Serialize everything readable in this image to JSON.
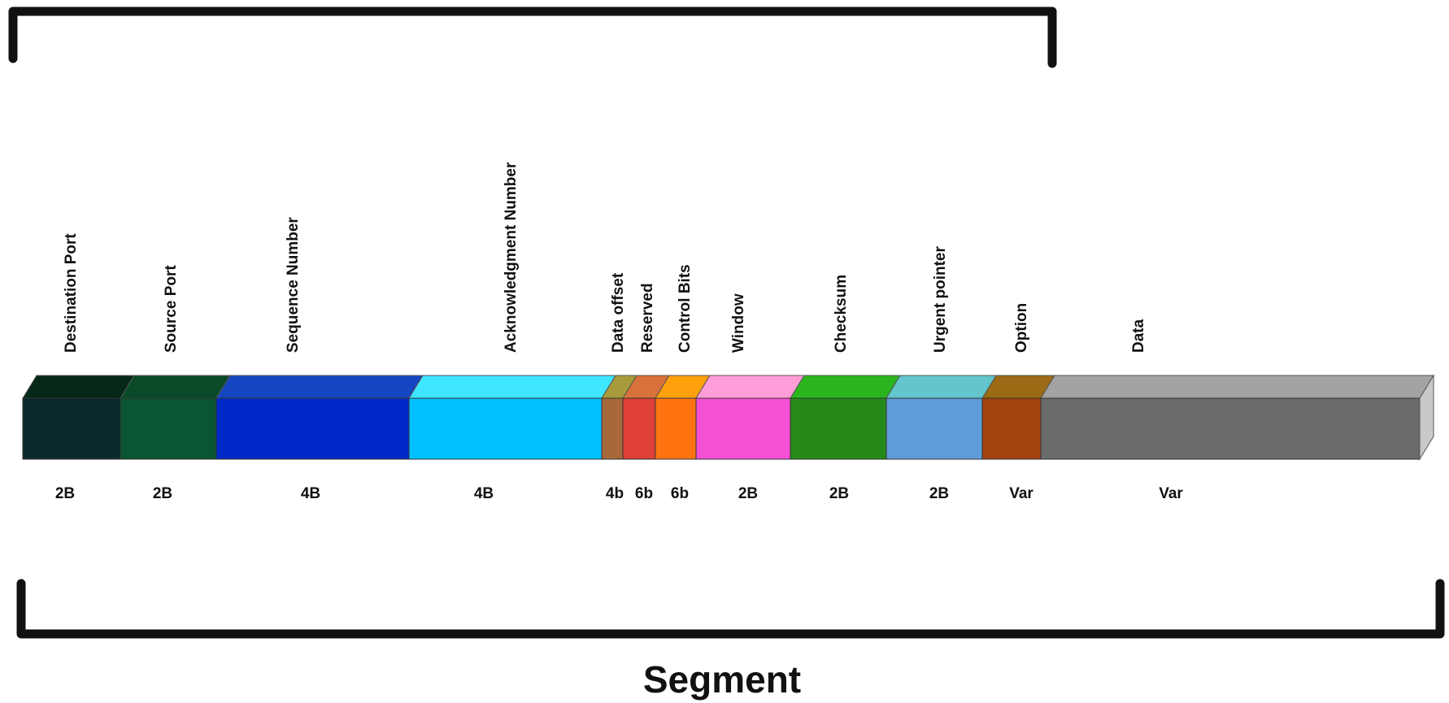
{
  "caption": "Segment",
  "fields": [
    {
      "name": "Destination Port",
      "size": "2B",
      "face": "#0b2a2c",
      "top": "#062818"
    },
    {
      "name": "Source Port",
      "size": "2B",
      "face": "#0a5532",
      "top": "#0b4a28"
    },
    {
      "name": "Sequence Number",
      "size": "4B",
      "face": "#0028c8",
      "top": "#1545c0"
    },
    {
      "name": "Acknowledgment Number",
      "size": "4B",
      "face": "#00c0ff",
      "top": "#3ee6ff"
    },
    {
      "name": "Data offset",
      "size": "4b",
      "face": "#a8683a",
      "top": "#a79b3c"
    },
    {
      "name": "Reserved",
      "size": "6b",
      "face": "#de3f36",
      "top": "#d8723a"
    },
    {
      "name": "Control Bits",
      "size": "6b",
      "face": "#ff7410",
      "top": "#ffa00c"
    },
    {
      "name": "Window",
      "size": "2B",
      "face": "#f54fd6",
      "top": "#ff9dd8"
    },
    {
      "name": "Checksum",
      "size": "2B",
      "face": "#268a18",
      "top": "#2ab51e"
    },
    {
      "name": "Urgent pointer",
      "size": "2B",
      "face": "#5f9bd8",
      "top": "#62c6cc"
    },
    {
      "name": "Option",
      "size": "Var",
      "face": "#a2420e",
      "top": "#9b6a14"
    },
    {
      "name": "Data",
      "size": "Var",
      "face": "#6a6a6a",
      "top": "#a3a3a3"
    }
  ]
}
